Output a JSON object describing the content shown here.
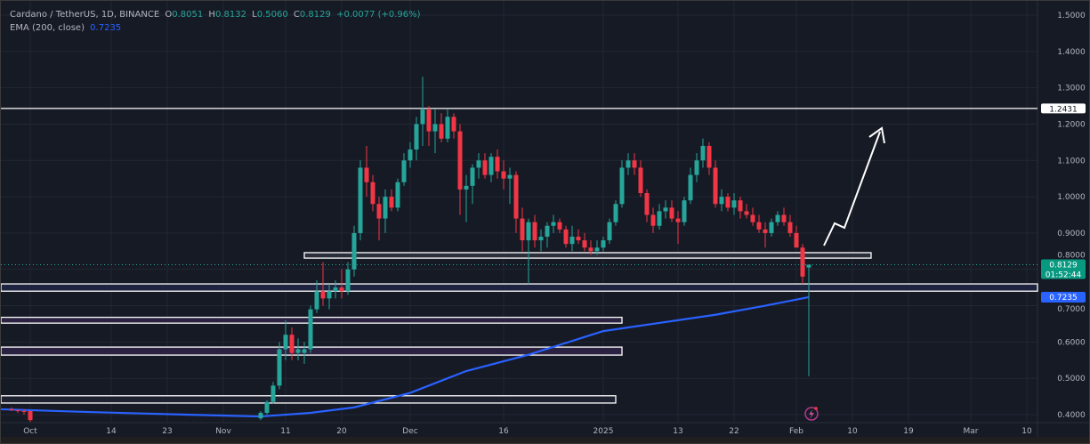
{
  "legend": {
    "symbol": "Cardano / TetherUS, 1D, BINANCE",
    "o_label": "O",
    "o": "0.8051",
    "h_label": "H",
    "h": "0.8132",
    "l_label": "L",
    "l": "0.5060",
    "c_label": "C",
    "c": "0.8129",
    "change": "+0.0077 (+0.96%)",
    "ema_label": "EMA (200, close)",
    "ema_value": "0.7235"
  },
  "price_axis": {
    "ticks": [
      "1.5000",
      "1.4000",
      "1.3000",
      "1.2000",
      "1.1000",
      "1.0000",
      "0.9000",
      "0.8000",
      "0.7000",
      "0.6000",
      "0.5000",
      "0.4000"
    ],
    "last_price": "0.8129",
    "countdown": "01:52:44",
    "ema_tag": "0.7235",
    "level_tag": "1.2431"
  },
  "time_axis": {
    "ticks": [
      {
        "label": "Oct",
        "day": 0
      },
      {
        "label": "14",
        "day": 13
      },
      {
        "label": "23",
        "day": 22
      },
      {
        "label": "Nov",
        "day": 31
      },
      {
        "label": "11",
        "day": 41
      },
      {
        "label": "20",
        "day": 50
      },
      {
        "label": "Dec",
        "day": 61
      },
      {
        "label": "16",
        "day": 76
      },
      {
        "label": "2025",
        "day": 92
      },
      {
        "label": "13",
        "day": 104
      },
      {
        "label": "22",
        "day": 113
      },
      {
        "label": "Feb",
        "day": 123
      },
      {
        "label": "10",
        "day": 132
      },
      {
        "label": "19",
        "day": 141
      },
      {
        "label": "Mar",
        "day": 151
      },
      {
        "label": "10",
        "day": 160
      }
    ]
  },
  "colors": {
    "up": "#26a69a",
    "down": "#f23645",
    "ema": "#2962ff",
    "bg": "#161a25",
    "grid": "#232733"
  },
  "chart_data": {
    "type": "candlestick",
    "ylim": [
      0.4,
      1.5
    ],
    "first_candle_day": 37,
    "ohlc": [
      [
        0.39,
        0.41,
        0.385,
        0.405
      ],
      [
        0.405,
        0.44,
        0.4,
        0.435
      ],
      [
        0.435,
        0.49,
        0.43,
        0.48
      ],
      [
        0.48,
        0.6,
        0.47,
        0.58
      ],
      [
        0.58,
        0.66,
        0.55,
        0.62
      ],
      [
        0.62,
        0.64,
        0.55,
        0.57
      ],
      [
        0.57,
        0.61,
        0.55,
        0.58
      ],
      [
        0.57,
        0.6,
        0.54,
        0.58
      ],
      [
        0.58,
        0.7,
        0.57,
        0.69
      ],
      [
        0.69,
        0.77,
        0.68,
        0.74
      ],
      [
        0.74,
        0.82,
        0.7,
        0.72
      ],
      [
        0.72,
        0.76,
        0.69,
        0.74
      ],
      [
        0.74,
        0.77,
        0.72,
        0.75
      ],
      [
        0.75,
        0.8,
        0.72,
        0.74
      ],
      [
        0.74,
        0.82,
        0.73,
        0.8
      ],
      [
        0.8,
        0.92,
        0.78,
        0.9
      ],
      [
        0.9,
        1.1,
        0.88,
        1.08
      ],
      [
        1.08,
        1.14,
        1.0,
        1.04
      ],
      [
        1.04,
        1.06,
        0.96,
        0.98
      ],
      [
        0.98,
        1.0,
        0.88,
        0.94
      ],
      [
        0.94,
        1.02,
        0.9,
        1.0
      ],
      [
        1.0,
        1.02,
        0.96,
        0.97
      ],
      [
        0.97,
        1.05,
        0.96,
        1.04
      ],
      [
        1.04,
        1.12,
        1.03,
        1.1
      ],
      [
        1.1,
        1.15,
        1.08,
        1.13
      ],
      [
        1.13,
        1.22,
        1.1,
        1.2
      ],
      [
        1.2,
        1.33,
        1.14,
        1.24
      ],
      [
        1.24,
        1.25,
        1.14,
        1.18
      ],
      [
        1.18,
        1.24,
        1.12,
        1.2
      ],
      [
        1.2,
        1.23,
        1.15,
        1.16
      ],
      [
        1.16,
        1.24,
        1.15,
        1.22
      ],
      [
        1.22,
        1.23,
        1.16,
        1.18
      ],
      [
        1.18,
        1.2,
        0.95,
        1.02
      ],
      [
        1.02,
        1.06,
        0.93,
        1.03
      ],
      [
        1.03,
        1.09,
        0.98,
        1.08
      ],
      [
        1.08,
        1.12,
        1.05,
        1.1
      ],
      [
        1.1,
        1.12,
        1.05,
        1.06
      ],
      [
        1.06,
        1.12,
        1.04,
        1.11
      ],
      [
        1.11,
        1.13,
        1.05,
        1.07
      ],
      [
        1.07,
        1.1,
        1.02,
        1.05
      ],
      [
        1.05,
        1.08,
        0.98,
        1.06
      ],
      [
        1.06,
        1.07,
        0.9,
        0.94
      ],
      [
        0.94,
        0.97,
        0.85,
        0.88
      ],
      [
        0.88,
        0.94,
        0.76,
        0.93
      ],
      [
        0.93,
        0.95,
        0.86,
        0.88
      ],
      [
        0.88,
        0.91,
        0.85,
        0.89
      ],
      [
        0.89,
        0.93,
        0.86,
        0.92
      ],
      [
        0.92,
        0.95,
        0.9,
        0.93
      ],
      [
        0.93,
        0.94,
        0.9,
        0.91
      ],
      [
        0.91,
        0.92,
        0.86,
        0.87
      ],
      [
        0.87,
        0.92,
        0.85,
        0.89
      ],
      [
        0.89,
        0.91,
        0.87,
        0.88
      ],
      [
        0.88,
        0.9,
        0.85,
        0.86
      ],
      [
        0.86,
        0.88,
        0.84,
        0.85
      ],
      [
        0.85,
        0.88,
        0.84,
        0.86
      ],
      [
        0.86,
        0.89,
        0.85,
        0.88
      ],
      [
        0.88,
        0.94,
        0.87,
        0.93
      ],
      [
        0.93,
        0.99,
        0.92,
        0.98
      ],
      [
        0.98,
        1.1,
        0.97,
        1.08
      ],
      [
        1.08,
        1.12,
        1.06,
        1.1
      ],
      [
        1.1,
        1.12,
        1.06,
        1.08
      ],
      [
        1.08,
        1.1,
        1.0,
        1.01
      ],
      [
        1.01,
        1.02,
        0.93,
        0.95
      ],
      [
        0.95,
        0.97,
        0.9,
        0.92
      ],
      [
        0.92,
        0.98,
        0.91,
        0.96
      ],
      [
        0.96,
        0.99,
        0.94,
        0.97
      ],
      [
        0.97,
        0.99,
        0.93,
        0.94
      ],
      [
        0.94,
        0.96,
        0.87,
        0.93
      ],
      [
        0.93,
        1.0,
        0.92,
        0.99
      ],
      [
        0.99,
        1.08,
        0.98,
        1.06
      ],
      [
        1.06,
        1.12,
        1.04,
        1.1
      ],
      [
        1.1,
        1.16,
        1.08,
        1.14
      ],
      [
        1.14,
        1.15,
        1.06,
        1.08
      ],
      [
        1.08,
        1.1,
        0.97,
        0.98
      ],
      [
        0.98,
        1.02,
        0.96,
        1.0
      ],
      [
        1.0,
        1.01,
        0.96,
        0.97
      ],
      [
        0.97,
        1.01,
        0.95,
        0.99
      ],
      [
        0.99,
        1.0,
        0.94,
        0.96
      ],
      [
        0.96,
        0.98,
        0.94,
        0.95
      ],
      [
        0.95,
        0.97,
        0.92,
        0.93
      ],
      [
        0.93,
        0.95,
        0.9,
        0.91
      ],
      [
        0.91,
        0.93,
        0.86,
        0.9
      ],
      [
        0.9,
        0.94,
        0.89,
        0.93
      ],
      [
        0.93,
        0.96,
        0.92,
        0.95
      ],
      [
        0.95,
        0.97,
        0.92,
        0.93
      ],
      [
        0.93,
        0.95,
        0.89,
        0.9
      ],
      [
        0.9,
        0.92,
        0.86,
        0.86
      ],
      [
        0.86,
        0.87,
        0.76,
        0.78
      ],
      [
        0.8051,
        0.8132,
        0.506,
        0.8129
      ]
    ],
    "early_candles": [
      {
        "day": -3,
        "ohlc": [
          0.415,
          0.42,
          0.41,
          0.412
        ]
      },
      {
        "day": -2,
        "ohlc": [
          0.412,
          0.415,
          0.405,
          0.41
        ]
      },
      {
        "day": -1,
        "ohlc": [
          0.41,
          0.415,
          0.4,
          0.408
        ]
      },
      {
        "day": 0,
        "ohlc": [
          0.41,
          0.41,
          0.38,
          0.385
        ]
      }
    ],
    "ema": [
      [
        -5,
        0.415
      ],
      [
        10,
        0.407
      ],
      [
        25,
        0.4
      ],
      [
        37,
        0.395
      ],
      [
        45,
        0.405
      ],
      [
        52,
        0.42
      ],
      [
        61,
        0.46
      ],
      [
        70,
        0.52
      ],
      [
        80,
        0.565
      ],
      [
        92,
        0.63
      ],
      [
        100,
        0.65
      ],
      [
        110,
        0.675
      ],
      [
        118,
        0.7
      ],
      [
        125,
        0.7235
      ]
    ],
    "zones": [
      {
        "top": 0.846,
        "bottom": 0.831,
        "from": 44,
        "to": 135,
        "fill": "#2b2f3b"
      },
      {
        "top": 0.76,
        "bottom": 0.74,
        "from": -5,
        "to": 170,
        "fill": "#1e2440"
      },
      {
        "top": 0.668,
        "bottom": 0.652,
        "from": -5,
        "to": 95,
        "fill": "#2a2240"
      },
      {
        "top": 0.586,
        "bottom": 0.564,
        "from": -5,
        "to": 95,
        "fill": "#2a2240"
      },
      {
        "top": 0.452,
        "bottom": 0.432,
        "from": -5,
        "to": 94,
        "fill": "#1e2230"
      }
    ],
    "level": 1.2431
  }
}
